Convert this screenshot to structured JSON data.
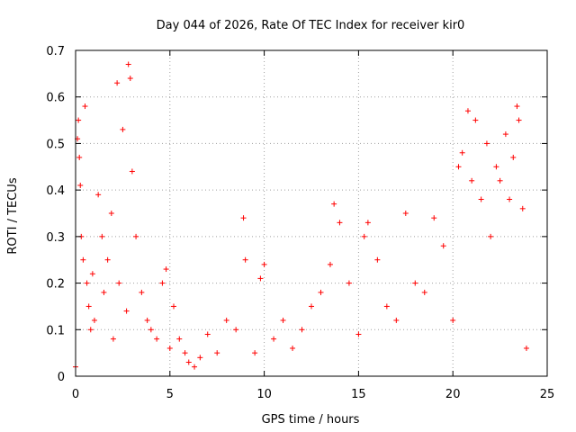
{
  "chart_data": {
    "type": "scatter",
    "title": "Day 044 of 2026, Rate Of TEC Index for receiver kir0",
    "xlabel": "GPS time / hours",
    "ylabel": "ROTI / TECUs",
    "xlim": [
      0,
      25
    ],
    "ylim": [
      0,
      0.7
    ],
    "x_ticks": [
      0,
      5,
      10,
      15,
      20,
      25
    ],
    "x_tick_labels": [
      "0",
      "5",
      "10",
      "15",
      "20",
      "25"
    ],
    "y_ticks": [
      0,
      0.1,
      0.2,
      0.3,
      0.4,
      0.5,
      0.6,
      0.7
    ],
    "y_tick_labels": [
      "0",
      "0.1",
      "0.2",
      "0.3",
      "0.4",
      "0.5",
      "0.6",
      "0.7"
    ],
    "grid": true,
    "marker": "+",
    "marker_color": "#ff0000",
    "series": [
      {
        "name": "ROTI",
        "x": [
          0.0,
          0.1,
          0.15,
          0.2,
          0.25,
          0.3,
          0.4,
          0.5,
          0.6,
          0.7,
          0.8,
          0.9,
          1.0,
          1.2,
          1.4,
          1.5,
          1.7,
          1.9,
          2.0,
          2.2,
          2.3,
          2.5,
          2.7,
          2.8,
          2.9,
          3.0,
          3.2,
          3.5,
          3.8,
          4.0,
          4.3,
          4.6,
          4.8,
          5.0,
          5.2,
          5.5,
          5.8,
          6.0,
          6.3,
          6.6,
          7.0,
          7.5,
          8.0,
          8.5,
          8.9,
          9.0,
          9.5,
          9.8,
          10.0,
          10.5,
          11.0,
          11.5,
          12.0,
          12.5,
          13.0,
          13.5,
          13.7,
          14.0,
          14.5,
          15.0,
          15.3,
          15.5,
          16.0,
          16.5,
          17.0,
          17.5,
          18.0,
          18.5,
          19.0,
          19.5,
          20.0,
          20.3,
          20.5,
          20.8,
          21.0,
          21.2,
          21.5,
          21.8,
          22.0,
          22.3,
          22.5,
          22.8,
          23.0,
          23.2,
          23.4,
          23.5,
          23.7,
          23.9
        ],
        "y": [
          0.02,
          0.51,
          0.55,
          0.47,
          0.41,
          0.3,
          0.25,
          0.58,
          0.2,
          0.15,
          0.1,
          0.22,
          0.12,
          0.39,
          0.3,
          0.18,
          0.25,
          0.35,
          0.08,
          0.63,
          0.2,
          0.53,
          0.14,
          0.67,
          0.64,
          0.44,
          0.3,
          0.18,
          0.12,
          0.1,
          0.08,
          0.2,
          0.23,
          0.06,
          0.15,
          0.08,
          0.05,
          0.03,
          0.02,
          0.04,
          0.09,
          0.05,
          0.12,
          0.1,
          0.34,
          0.25,
          0.05,
          0.21,
          0.24,
          0.08,
          0.12,
          0.06,
          0.1,
          0.15,
          0.18,
          0.24,
          0.37,
          0.33,
          0.2,
          0.09,
          0.3,
          0.33,
          0.25,
          0.15,
          0.12,
          0.35,
          0.2,
          0.18,
          0.34,
          0.28,
          0.12,
          0.45,
          0.48,
          0.57,
          0.42,
          0.55,
          0.38,
          0.5,
          0.3,
          0.45,
          0.42,
          0.52,
          0.38,
          0.47,
          0.58,
          0.55,
          0.36,
          0.06
        ]
      }
    ]
  }
}
